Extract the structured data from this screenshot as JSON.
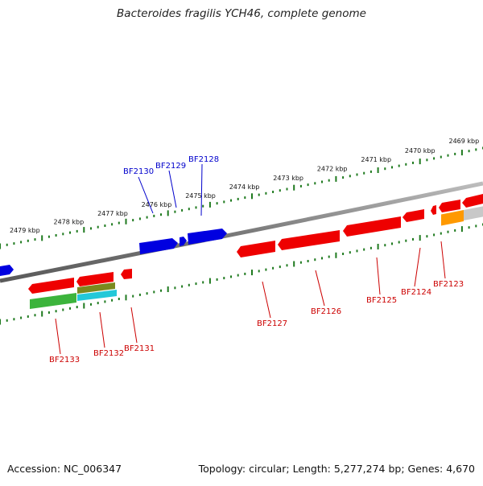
{
  "title": "Bacteroides fragilis YCH46, complete genome",
  "footer": {
    "accession": "Accession: NC_006347",
    "summary": "Topology: circular; Length: 5,277,274 bp; Genes: 4,670"
  },
  "colors": {
    "backbone": "#7a7a7a",
    "ruler": "#1f7a1f",
    "forward_gene": "#0000e0",
    "reverse_gene": "#ee0000",
    "forward_label": "#0000cc",
    "reverse_label": "#cc0000",
    "green_feature": "#3cb43c",
    "olive_feature": "#7a8a1e",
    "cyan_feature": "#22c8d8",
    "orange_feature": "#ff9900",
    "gray_feature": "#c8c8c8"
  },
  "ruler_labels": [
    "2479 kbp",
    "2478 kbp",
    "2477 kbp",
    "2476 kbp",
    "2475 kbp",
    "2474 kbp",
    "2473 kbp",
    "2472 kbp",
    "2471 kbp",
    "2470 kbp",
    "2469 kbp"
  ],
  "forward_genes": [
    "BF2130",
    "BF2129",
    "BF2128"
  ],
  "reverse_genes_upper": [
    "BF2127",
    "BF2126",
    "BF2125",
    "BF2124",
    "BF2123"
  ],
  "reverse_genes_lower": [
    "BF2133",
    "BF2132",
    "BF2131"
  ]
}
